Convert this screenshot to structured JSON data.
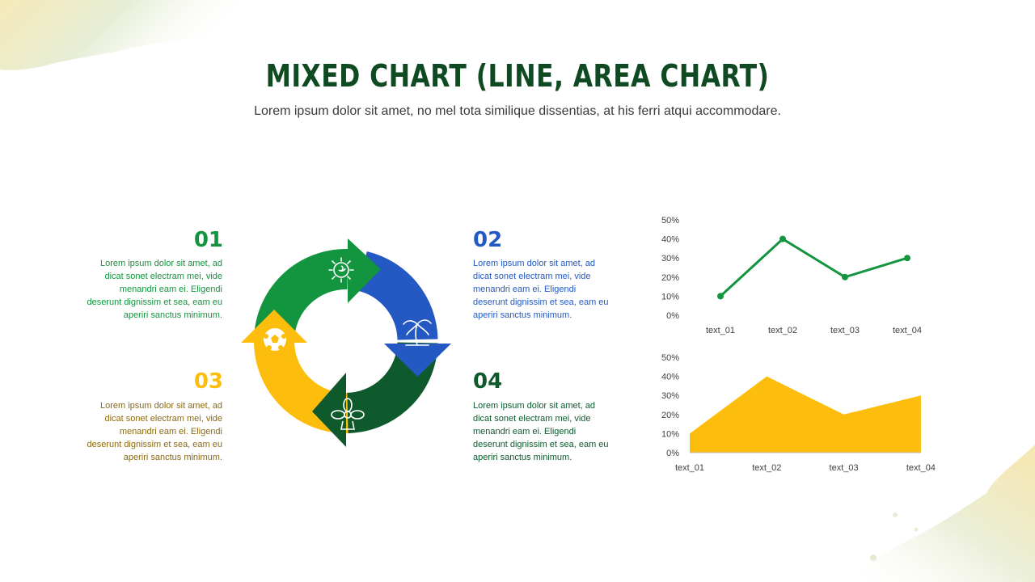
{
  "title": "MIXED CHART (LINE, AREA CHART)",
  "subtitle": "Lorem ipsum dolor sit amet, no mel tota similique dissentias, at his ferri atqui accommodare.",
  "colors": {
    "green": "#13943f",
    "blue": "#2459c4",
    "yellow": "#fdbd0d",
    "dark_green": "#0e5a2c",
    "title": "#0f4a22",
    "text_gold": "#8a6a10"
  },
  "items": [
    {
      "number": "01",
      "text": "Lorem ipsum dolor sit amet, ad dicat sonet electram mei, vide menandri eam ei. Eligendi deserunt dignissim et sea, eam eu aperiri sanctus minimum."
    },
    {
      "number": "02",
      "text": "Lorem ipsum dolor sit amet, ad dicat sonet electram mei, vide menandri eam ei. Eligendi deserunt dignissim et sea, eam eu aperiri sanctus minimum."
    },
    {
      "number": "03",
      "text": "Lorem ipsum dolor sit amet, ad dicat sonet electram mei, vide menandri eam ei. Eligendi deserunt dignissim et sea, eam eu aperiri sanctus minimum."
    },
    {
      "number": "04",
      "text": "Lorem ipsum dolor sit amet, ad dicat sonet electram mei, vide menandri eam ei. Eligendi deserunt dignissim et sea, eam eu aperiri sanctus minimum."
    }
  ],
  "cycle_icons": [
    "sun-icon",
    "palm-tree-icon",
    "flower-icon",
    "soccer-ball-icon"
  ],
  "chart_data": [
    {
      "type": "line",
      "categories": [
        "text_01",
        "text_02",
        "text_03",
        "text_04"
      ],
      "values": [
        10,
        40,
        20,
        30
      ],
      "yticks": [
        "0%",
        "10%",
        "20%",
        "30%",
        "40%",
        "50%"
      ],
      "ylim": [
        0,
        50
      ],
      "grid": false,
      "color": "#13943f"
    },
    {
      "type": "area",
      "categories": [
        "text_01",
        "text_02",
        "text_03",
        "text_04"
      ],
      "values": [
        10,
        40,
        20,
        30
      ],
      "yticks": [
        "0%",
        "10%",
        "20%",
        "30%",
        "40%",
        "50%"
      ],
      "ylim": [
        0,
        50
      ],
      "grid": false,
      "color": "#fdbd0d"
    }
  ]
}
